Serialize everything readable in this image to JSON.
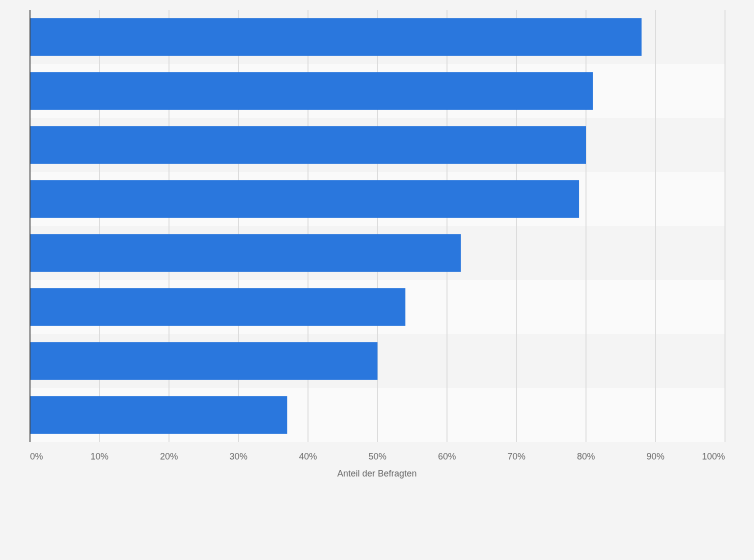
{
  "chart_data": {
    "type": "bar",
    "orientation": "horizontal",
    "x_label": "Anteil der Befragten",
    "categories": [
      null,
      null,
      null,
      null,
      null,
      null,
      null,
      null
    ],
    "values": [
      88,
      81,
      80,
      79,
      62,
      54,
      50,
      37
    ],
    "color": "#2a77dd",
    "xlim": [
      0,
      100
    ],
    "xticks": [
      {
        "value": 0,
        "label": "0%"
      },
      {
        "value": 10,
        "label": "10%"
      },
      {
        "value": 20,
        "label": "20%"
      },
      {
        "value": 30,
        "label": "30%"
      },
      {
        "value": 40,
        "label": "40%"
      },
      {
        "value": 50,
        "label": "50%"
      },
      {
        "value": 60,
        "label": "60%"
      },
      {
        "value": 70,
        "label": "70%"
      },
      {
        "value": 80,
        "label": "80%"
      },
      {
        "value": 90,
        "label": "90%"
      },
      {
        "value": 100,
        "label": "100%"
      }
    ],
    "grid": true
  }
}
